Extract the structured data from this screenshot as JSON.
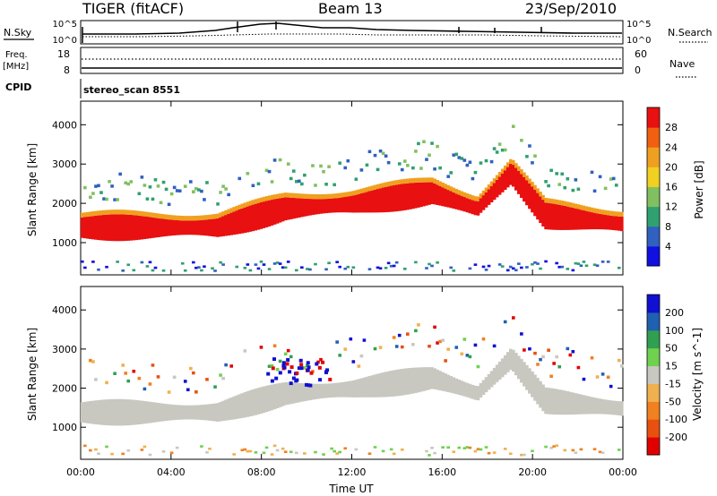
{
  "header": {
    "station": "TIGER (fitACF)",
    "beam": "Beam 13",
    "date": "23/Sep/2010"
  },
  "top_panels": {
    "nsky_label": "N.Sky",
    "nsky_ticks": [
      "10^5",
      "10^0"
    ],
    "nsearch_label": "N.Search",
    "nsearch_ticks": [
      "10^5",
      "10^0"
    ],
    "freq_label": "Freq.",
    "freq_unit": "[MHz]",
    "freq_ticks": [
      "18",
      "8"
    ],
    "nave_label": "Nave",
    "nave_ticks": [
      "60",
      "0"
    ],
    "cpid_label": "CPID",
    "cpid_text": "stereo_scan 8551"
  },
  "chart_data": [
    {
      "type": "heatmap",
      "quantity": "Power",
      "ylabel": "Slant Range [km]",
      "ylim": [
        180,
        4600
      ],
      "yticks": [
        1000,
        2000,
        3000,
        4000
      ],
      "x_ticks": [
        "00:00",
        "04:00",
        "08:00",
        "12:00",
        "16:00",
        "20:00",
        "00:00"
      ],
      "colorbar": {
        "label": "Power [dB]",
        "ticks": [
          "28",
          "24",
          "20",
          "16",
          "12",
          "8",
          "4"
        ],
        "colors": [
          "#1010e0",
          "#3060c0",
          "#30a070",
          "#80c060",
          "#f0d020",
          "#f0a020",
          "#f06010",
          "#e81010"
        ]
      }
    },
    {
      "type": "heatmap",
      "quantity": "Velocity",
      "ylabel": "Slant Range [km]",
      "ylim": [
        180,
        4600
      ],
      "yticks": [
        1000,
        2000,
        3000,
        4000
      ],
      "x_ticks": [
        "00:00",
        "04:00",
        "08:00",
        "12:00",
        "16:00",
        "20:00",
        "00:00"
      ],
      "xlabel": "Time UT",
      "colorbar": {
        "label": "Velocity [m s^-1]",
        "ticks": [
          "200",
          "100",
          "50",
          "15",
          "-15",
          "-50",
          "-100",
          "-200"
        ],
        "colors": [
          "#e00000",
          "#e85010",
          "#f08020",
          "#f0b050",
          "#c8c8c0",
          "#70d050",
          "#30a050",
          "#2060b0",
          "#1010d0"
        ]
      }
    }
  ]
}
